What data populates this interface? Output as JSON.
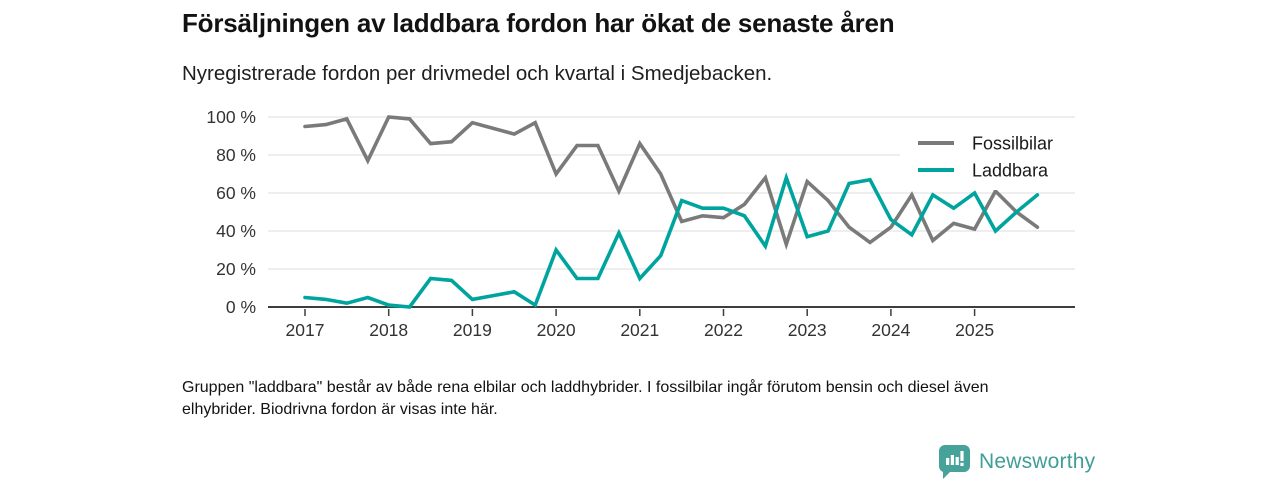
{
  "header": {
    "title": "Försäljningen av laddbara fordon har ökat de senaste åren",
    "subtitle": "Nyregistrerade fordon per drivmedel och kvartal i Smedjebacken."
  },
  "footnote": "Gruppen \"laddbara\" består av både rena elbilar och laddhybrider. I fossilbilar ingår förutom bensin och diesel även elhybrider. Biodrivna fordon är visas inte här.",
  "branding": {
    "name": "Newsworthy",
    "icon": "bar-chart-speech-bubble-icon",
    "icon_color": "#47a29a",
    "text_color": "#3f9e97"
  },
  "colors": {
    "fossil_line": "#7a7a7a",
    "laddbara_line": "#00a49e",
    "gridline": "#dedede",
    "axis_line": "#3d3d3d",
    "tick_text": "#333333",
    "legend_text": "#1a1a1a"
  },
  "chart_data": {
    "type": "line",
    "title": "Försäljningen av laddbara fordon har ökat de senaste åren",
    "subtitle": "Nyregistrerade fordon per drivmedel och kvartal i Smedjebacken.",
    "xlabel": "",
    "ylabel": "",
    "ylim": [
      0,
      100
    ],
    "grid": true,
    "legend_position": "top-right",
    "y_tick_labels": [
      "0 %",
      "20 %",
      "40 %",
      "60 %",
      "80 %",
      "100 %"
    ],
    "x_tick_labels": [
      "2017",
      "2018",
      "2019",
      "2020",
      "2021",
      "2022",
      "2023",
      "2024",
      "2025"
    ],
    "categories": [
      "2017-K1",
      "2017-K2",
      "2017-K3",
      "2017-K4",
      "2018-K1",
      "2018-K2",
      "2018-K3",
      "2018-K4",
      "2019-K1",
      "2019-K2",
      "2019-K3",
      "2019-K4",
      "2020-K1",
      "2020-K2",
      "2020-K3",
      "2020-K4",
      "2021-K1",
      "2021-K2",
      "2021-K3",
      "2021-K4",
      "2022-K1",
      "2022-K2",
      "2022-K3",
      "2022-K4",
      "2023-K1",
      "2023-K2",
      "2023-K3",
      "2023-K4",
      "2024-K1",
      "2024-K2",
      "2024-K3",
      "2024-K4",
      "2025-K1",
      "2025-K2",
      "2025-K3",
      "2025-K4"
    ],
    "series": [
      {
        "name": "Fossilbilar",
        "color": "#7a7a7a",
        "values": [
          95,
          96,
          99,
          77,
          100,
          99,
          86,
          87,
          97,
          94,
          91,
          97,
          70,
          85,
          85,
          61,
          86,
          70,
          45,
          48,
          47,
          54,
          68,
          33,
          66,
          56,
          42,
          34,
          42,
          59,
          35,
          44,
          41,
          61,
          50,
          42
        ]
      },
      {
        "name": "Laddbara",
        "color": "#00a49e",
        "values": [
          5,
          4,
          2,
          5,
          1,
          0,
          15,
          14,
          4,
          6,
          8,
          1,
          30,
          15,
          15,
          39,
          15,
          27,
          56,
          52,
          52,
          48,
          32,
          68,
          37,
          40,
          65,
          67,
          46,
          38,
          59,
          52,
          60,
          40,
          50,
          59
        ]
      }
    ]
  }
}
